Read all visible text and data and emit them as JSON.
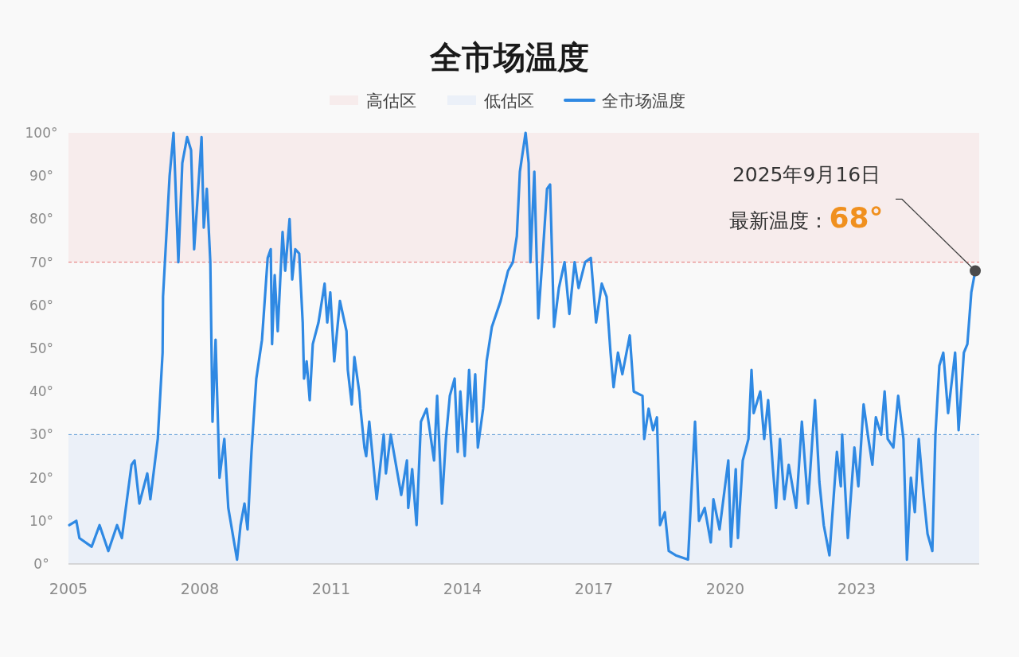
{
  "chart_data": {
    "type": "line",
    "title": "全市场温度",
    "legend": "top",
    "grid": false,
    "xlim": [
      2005,
      2025.8
    ],
    "xticks": [
      2005,
      2008,
      2011,
      2014,
      2017,
      2020,
      2023
    ],
    "ylim": [
      0,
      100
    ],
    "yticks": [
      {
        "value": 0,
        "label": "0°"
      },
      {
        "value": 10,
        "label": "10°"
      },
      {
        "value": 20,
        "label": "20°"
      },
      {
        "value": 30,
        "label": "30°"
      },
      {
        "value": 40,
        "label": "40°"
      },
      {
        "value": 50,
        "label": "50°"
      },
      {
        "value": 60,
        "label": "60°"
      },
      {
        "value": 70,
        "label": "70°"
      },
      {
        "value": 80,
        "label": "80°"
      },
      {
        "value": 90,
        "label": "90°"
      },
      {
        "value": 100,
        "label": "100°"
      }
    ],
    "bands": [
      {
        "axis": "y",
        "from": 70,
        "to": 100,
        "label": "高估区",
        "color": "#f7ecec"
      },
      {
        "axis": "y",
        "from": 0,
        "to": 30,
        "label": "低估区",
        "color": "#ebf0f8"
      }
    ],
    "ref_lines": [
      {
        "axis": "y",
        "value": 70,
        "color": "#e57373",
        "line_style": "dashed"
      },
      {
        "axis": "y",
        "value": 30,
        "color": "#5b9bd5",
        "line_style": "dashed"
      }
    ],
    "annotations": [
      {
        "text": "2025年9月16日",
        "x": 2025.71,
        "y": 68
      },
      {
        "text": "最新温度：**68°**",
        "x": 2025.71,
        "y": 68
      }
    ],
    "series": [
      {
        "name": "全市场温度",
        "color": "#2f89e3",
        "x": [
          2005.02,
          2005.18,
          2005.25,
          2005.53,
          2005.71,
          2005.91,
          2006.11,
          2006.22,
          2006.44,
          2006.51,
          2006.62,
          2006.8,
          2006.87,
          2007.04,
          2007.15,
          2007.16,
          2007.31,
          2007.4,
          2007.51,
          2007.6,
          2007.71,
          2007.8,
          2007.87,
          2007.93,
          2008.04,
          2008.09,
          2008.16,
          2008.24,
          2008.29,
          2008.36,
          2008.45,
          2008.56,
          2008.65,
          2008.85,
          2008.93,
          2009.02,
          2009.09,
          2009.18,
          2009.29,
          2009.42,
          2009.55,
          2009.62,
          2009.65,
          2009.71,
          2009.78,
          2009.89,
          2009.95,
          2010.05,
          2010.11,
          2010.18,
          2010.27,
          2010.35,
          2010.38,
          2010.44,
          2010.51,
          2010.58,
          2010.71,
          2010.85,
          2010.91,
          2010.98,
          2011.07,
          2011.2,
          2011.35,
          2011.38,
          2011.47,
          2011.53,
          2011.64,
          2011.67,
          2011.76,
          2011.8,
          2011.87,
          2012.04,
          2012.2,
          2012.25,
          2012.36,
          2012.6,
          2012.73,
          2012.76,
          2012.85,
          2012.95,
          2013.05,
          2013.18,
          2013.35,
          2013.42,
          2013.53,
          2013.62,
          2013.71,
          2013.82,
          2013.89,
          2013.95,
          2014.05,
          2014.15,
          2014.22,
          2014.29,
          2014.35,
          2014.47,
          2014.55,
          2014.67,
          2014.87,
          2015.04,
          2015.15,
          2015.24,
          2015.31,
          2015.44,
          2015.51,
          2015.55,
          2015.64,
          2015.73,
          2015.84,
          2015.93,
          2016.0,
          2016.09,
          2016.2,
          2016.33,
          2016.44,
          2016.56,
          2016.65,
          2016.8,
          2016.93,
          2017.05,
          2017.18,
          2017.29,
          2017.38,
          2017.45,
          2017.55,
          2017.65,
          2017.82,
          2017.91,
          2018.11,
          2018.15,
          2018.25,
          2018.35,
          2018.44,
          2018.51,
          2018.62,
          2018.71,
          2018.87,
          2019.15,
          2019.24,
          2019.31,
          2019.4,
          2019.53,
          2019.67,
          2019.73,
          2019.87,
          2020.07,
          2020.13,
          2020.24,
          2020.29,
          2020.4,
          2020.53,
          2020.6,
          2020.65,
          2020.8,
          2020.89,
          2020.98,
          2021.09,
          2021.16,
          2021.25,
          2021.35,
          2021.45,
          2021.62,
          2021.75,
          2021.89,
          2022.05,
          2022.15,
          2022.25,
          2022.38,
          2022.55,
          2022.64,
          2022.67,
          2022.8,
          2022.95,
          2023.04,
          2023.16,
          2023.27,
          2023.36,
          2023.44,
          2023.56,
          2023.64,
          2023.71,
          2023.84,
          2023.95,
          2024.07,
          2024.15,
          2024.24,
          2024.33,
          2024.42,
          2024.53,
          2024.62,
          2024.73,
          2024.8,
          2024.89,
          2024.98,
          2025.09,
          2025.25,
          2025.33,
          2025.45,
          2025.53,
          2025.62,
          2025.71
        ],
        "values": [
          9,
          10,
          6,
          4,
          9,
          3,
          9,
          6,
          23,
          24,
          14,
          21,
          15,
          29,
          49,
          62,
          90,
          100,
          70,
          93,
          99,
          96,
          73,
          82,
          99,
          78,
          87,
          70,
          33,
          52,
          20,
          29,
          13,
          1,
          9,
          14,
          8,
          26,
          43,
          52,
          71,
          73,
          51,
          67,
          54,
          77,
          68,
          80,
          66,
          73,
          72,
          56,
          43,
          47,
          38,
          51,
          56,
          65,
          56,
          63,
          47,
          61,
          54,
          45,
          37,
          48,
          40,
          36,
          27,
          25,
          33,
          15,
          30,
          21,
          30,
          16,
          24,
          13,
          22,
          9,
          33,
          36,
          24,
          39,
          14,
          29,
          39,
          43,
          26,
          40,
          25,
          45,
          33,
          44,
          27,
          36,
          47,
          55,
          61,
          68,
          70,
          76,
          91,
          100,
          93,
          70,
          91,
          57,
          73,
          87,
          88,
          55,
          64,
          70,
          58,
          70,
          64,
          70,
          71,
          56,
          65,
          62,
          49,
          41,
          49,
          44,
          53,
          40,
          39,
          29,
          36,
          31,
          34,
          9,
          12,
          3,
          2,
          1,
          19,
          33,
          10,
          13,
          5,
          15,
          8,
          24,
          4,
          22,
          6,
          24,
          29,
          45,
          35,
          40,
          29,
          38,
          22,
          13,
          29,
          15,
          23,
          13,
          33,
          14,
          38,
          19,
          9,
          2,
          26,
          18,
          30,
          6,
          27,
          18,
          37,
          29,
          23,
          34,
          30,
          40,
          29,
          27,
          39,
          29,
          1,
          20,
          12,
          29,
          16,
          7,
          3,
          30,
          46,
          49,
          35,
          49,
          31,
          49,
          51,
          63,
          68
        ]
      }
    ]
  }
}
